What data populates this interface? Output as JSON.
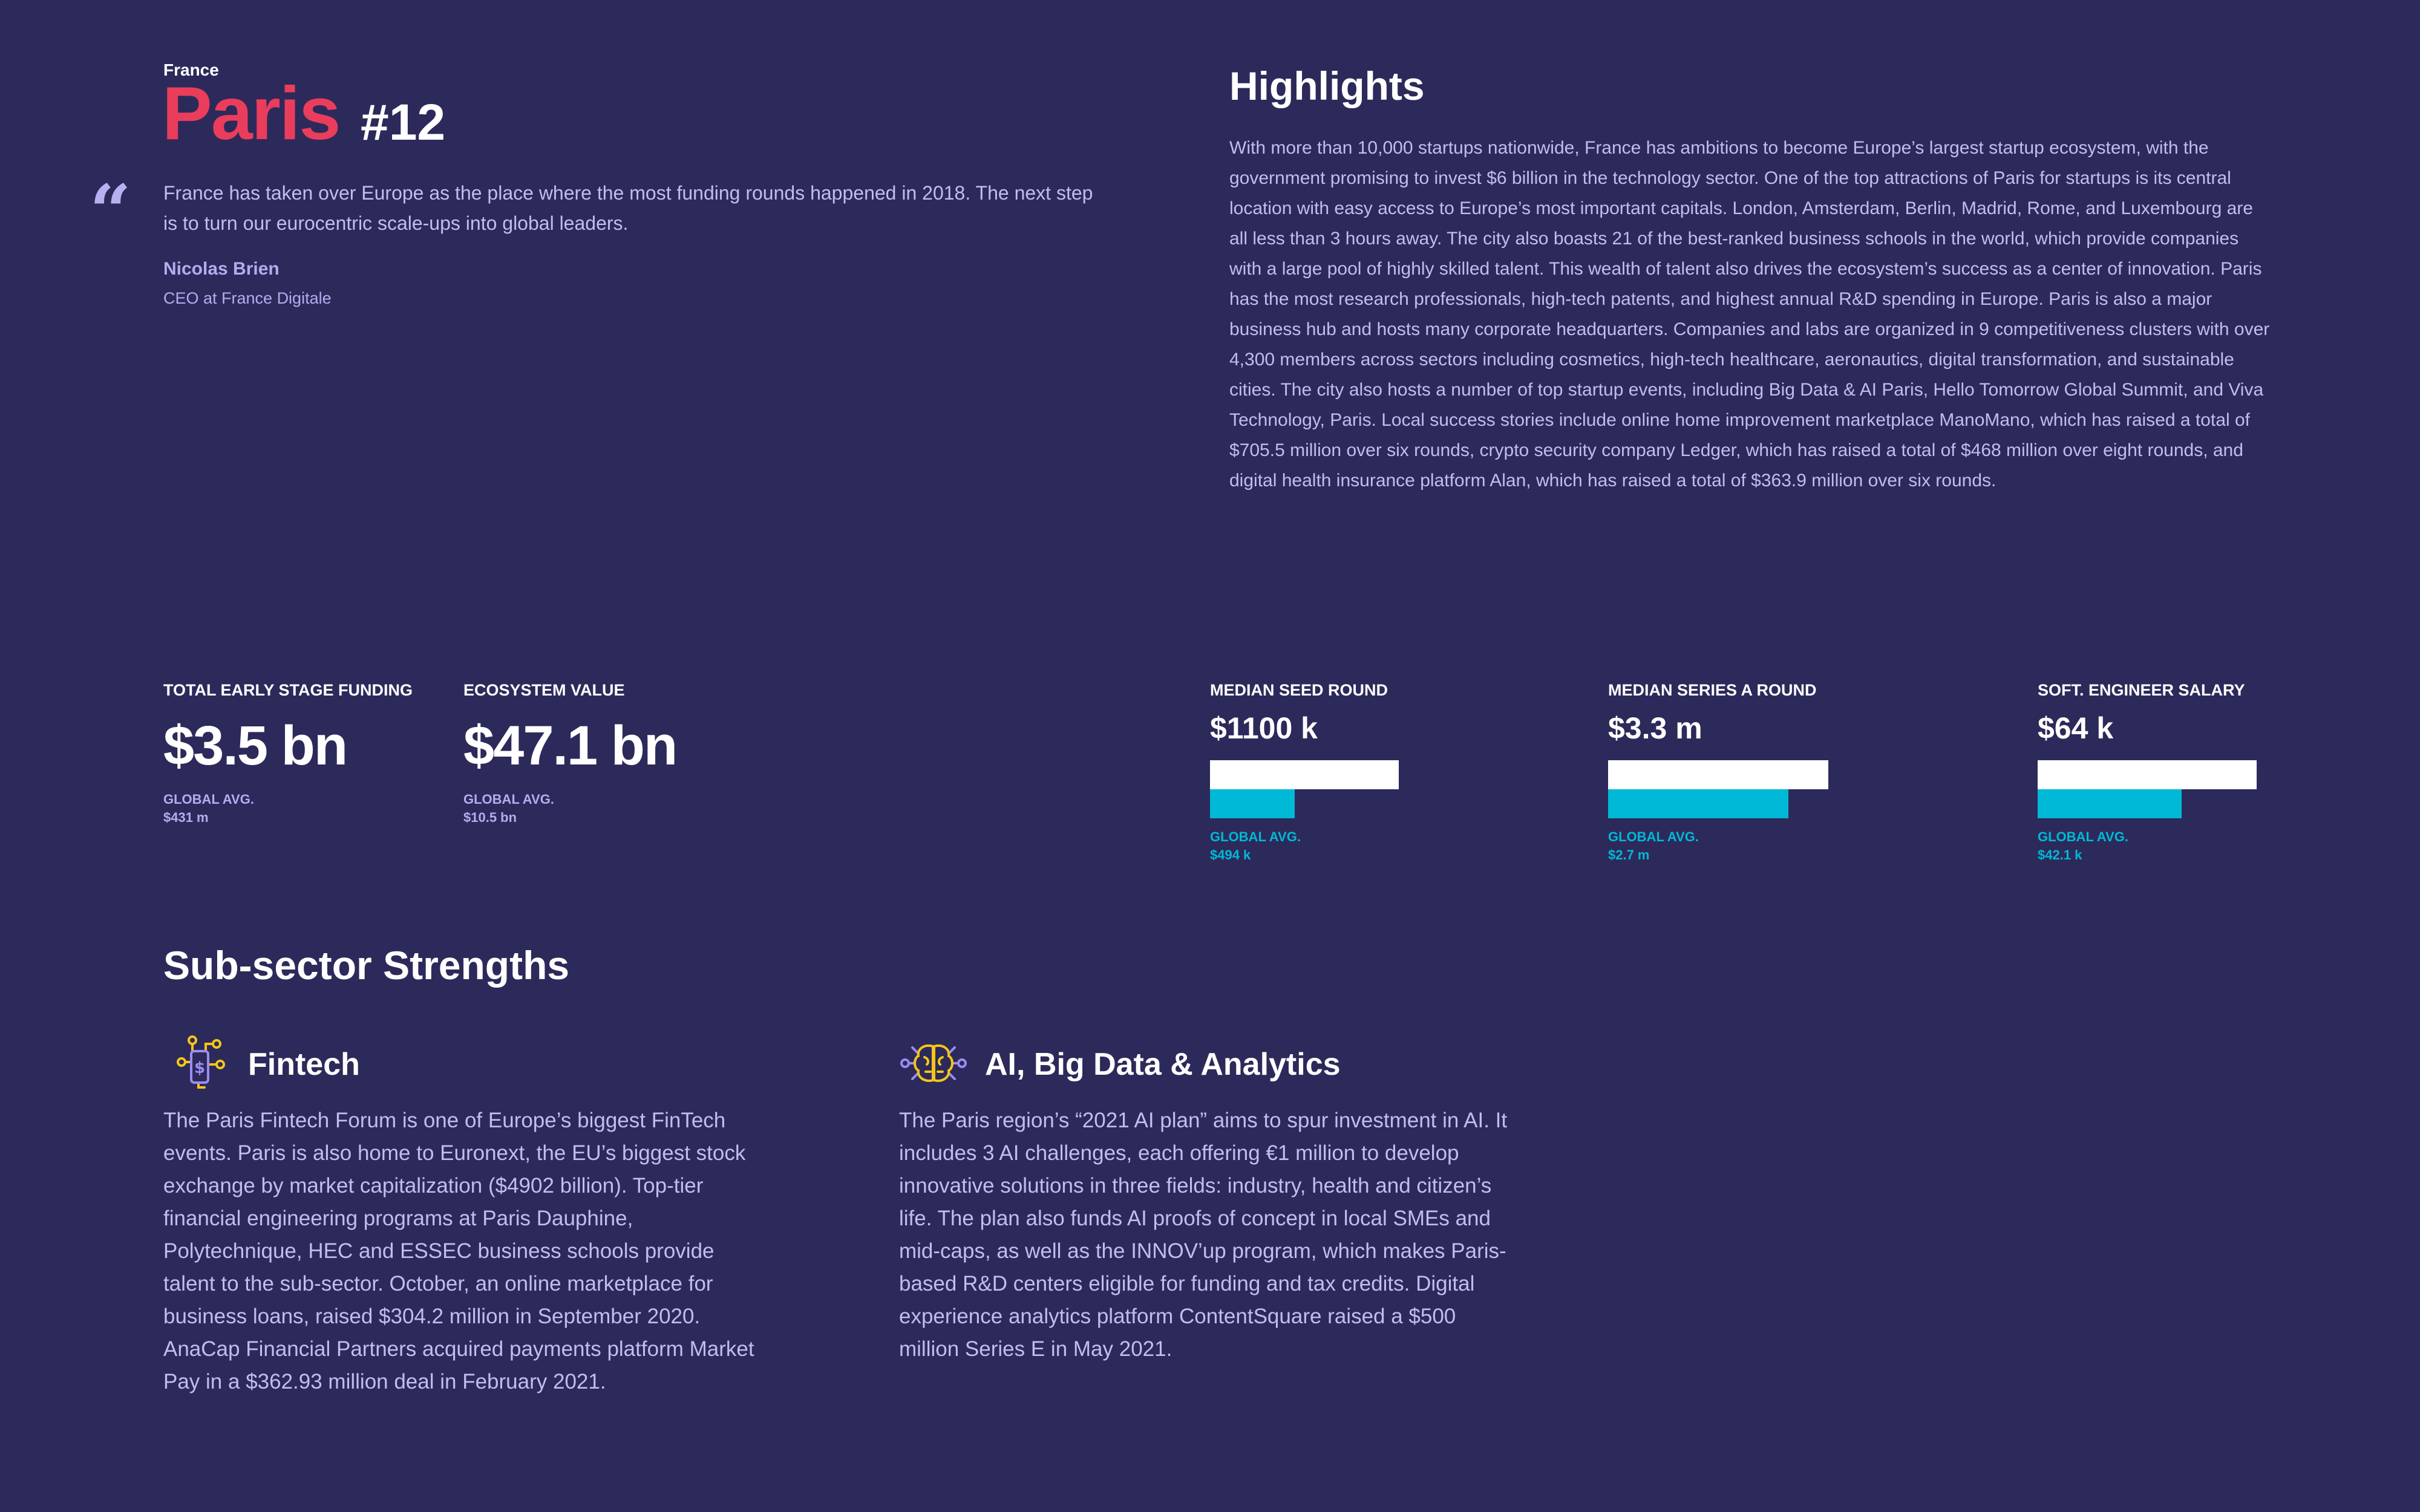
{
  "header": {
    "country": "France",
    "city": "Paris",
    "rank": "#12"
  },
  "quote": {
    "mark": "“",
    "text": "France has taken over Europe as the place where the most funding rounds happened in 2018. The next step is to turn our eurocentric scale-ups into global leaders.",
    "author": "Nicolas Brien",
    "role": "CEO at France Digitale"
  },
  "highlights": {
    "title": "Highlights",
    "body": "With more than 10,000 startups nationwide, France has ambitions to become Europe’s largest startup ecosystem, with the government promising to invest $6 billion in the technology sector. One of the top attractions of Paris for startups is its central location with easy access to Europe’s most important capitals. London, Amsterdam, Berlin, Madrid, Rome, and Luxembourg are all less than 3 hours away. The city also boasts 21 of the best-ranked business schools in the world, which provide companies with a large pool of highly skilled talent. This wealth of talent also drives the ecosystem’s success as a center of innovation. Paris has the most research professionals, high-tech patents, and highest annual R&D spending in Europe. Paris is also a major business hub and hosts many corporate headquarters. Companies and labs are organized in 9 competitiveness clusters with over 4,300 members across sectors including cosmetics, high-tech healthcare, aeronautics, digital transformation, and sustainable cities. The city also hosts a number of top startup events, including Big Data & AI Paris, Hello Tomorrow Global Summit, and Viva Technology, Paris. Local success stories include online home improvement marketplace ManoMano, which has raised a total of $705.5 million over six rounds, crypto security company Ledger, which has raised a total of $468 million over eight rounds, and digital health insurance platform Alan, which has raised a total of $363.9 million over six rounds."
  },
  "stats": {
    "funding": {
      "label": "TOTAL EARLY STAGE FUNDING",
      "value": "$3.5 bn",
      "avg_label": "GLOBAL AVG.",
      "avg_value": "$431 m"
    },
    "ecosystem": {
      "label": "ECOSYSTEM VALUE",
      "value": "$47.1 bn",
      "avg_label": "GLOBAL AVG.",
      "avg_value": "$10.5 bn"
    }
  },
  "bars": {
    "seed": {
      "label": "MEDIAN SEED ROUND",
      "value": "$1100 k",
      "avg_label": "GLOBAL AVG.",
      "avg_value": "$494 k",
      "avg_ratio": 0.449
    },
    "series_a": {
      "label": "MEDIAN SERIES A ROUND",
      "value": "$3.3 m",
      "avg_label": "GLOBAL AVG.",
      "avg_value": "$2.7 m",
      "avg_ratio": 0.818
    },
    "salary": {
      "label": "SOFT. ENGINEER SALARY",
      "value": "$64 k",
      "avg_label": "GLOBAL AVG.",
      "avg_value": "$42.1 k",
      "avg_ratio": 0.658
    }
  },
  "subsectors": {
    "title": "Sub-sector Strengths",
    "fintech": {
      "name": "Fintech",
      "icon": "fintech-icon",
      "body": "The Paris Fintech Forum is one of Europe’s biggest FinTech events. Paris is also home to Euronext, the EU’s biggest stock exchange by market capitalization ($4902 billion). Top-tier financial engineering programs at Paris Dauphine, Polytechnique, HEC and ESSEC business schools provide talent to the sub-sector. October, an online marketplace for business loans, raised $304.2 million in September 2020. AnaCap Financial Partners acquired payments platform Market Pay in a $362.93 million deal in February 2021."
    },
    "ai": {
      "name": "AI, Big Data & Analytics",
      "icon": "brain-circuit-icon",
      "body": "The Paris region’s “2021 AI plan” aims to spur investment in AI. It includes 3 AI challenges, each offering €1 million to develop innovative solutions in three fields: industry, health and citizen’s life. The plan also funds AI proofs of concept in local SMEs and mid-caps, as well as the INNOV’up program, which makes Paris-based R&D centers eligible for funding and tax credits. Digital experience analytics platform ContentSquare raised a $500 million Series E in May 2021."
    }
  },
  "colors": {
    "background": "#2c2a5a",
    "accent_red": "#ea3d5c",
    "accent_cyan": "#00b9d6",
    "text_lavender": "#c2bdef",
    "icon_yellow": "#f5c518",
    "icon_purple": "#9b8cf0"
  }
}
